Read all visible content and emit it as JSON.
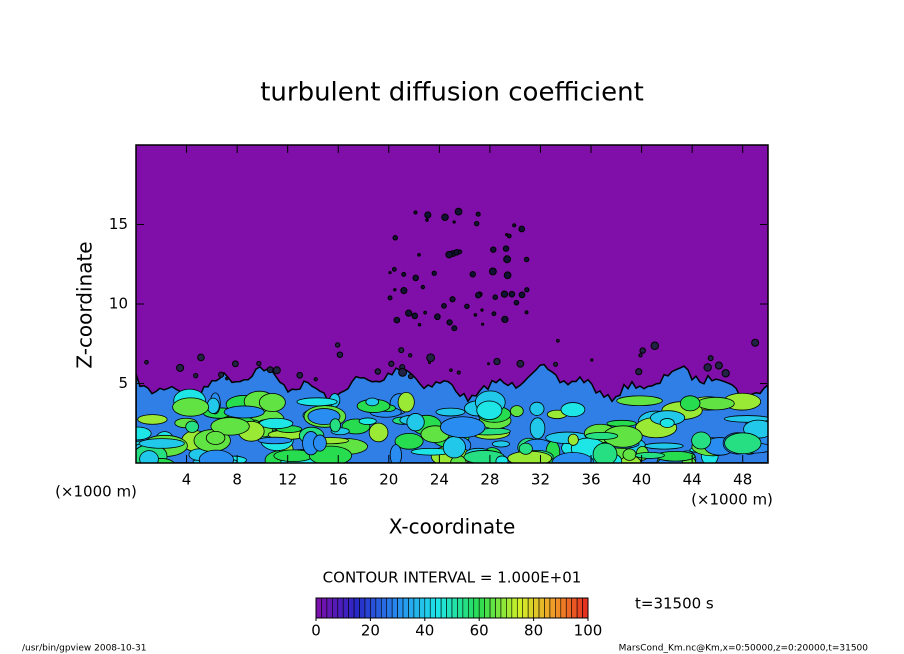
{
  "chart_data": {
    "type": "contour",
    "title": "turbulent diffusion coefficient",
    "x_label": "X-coordinate",
    "y_label": "Z-coordinate",
    "axis_unit": "(×1000 m)",
    "xlim": [
      0,
      50
    ],
    "xticks": [
      4,
      8,
      12,
      16,
      20,
      24,
      28,
      32,
      36,
      40,
      44,
      48
    ],
    "ylim": [
      0,
      20
    ],
    "yticks": [
      5,
      10,
      15
    ],
    "contour_interval": "CONTOUR INTERVAL = 1.000E+01",
    "time_label": "t=31500 s",
    "clim": [
      0,
      100
    ],
    "cticks": [
      0,
      20,
      40,
      60,
      80,
      100
    ],
    "footer_left": "/usr/bin/gpview  2008-10-31",
    "footer_right": "MarsCond_Km.nc@Km,x=0:50000,z=0:20000,t=31500"
  }
}
